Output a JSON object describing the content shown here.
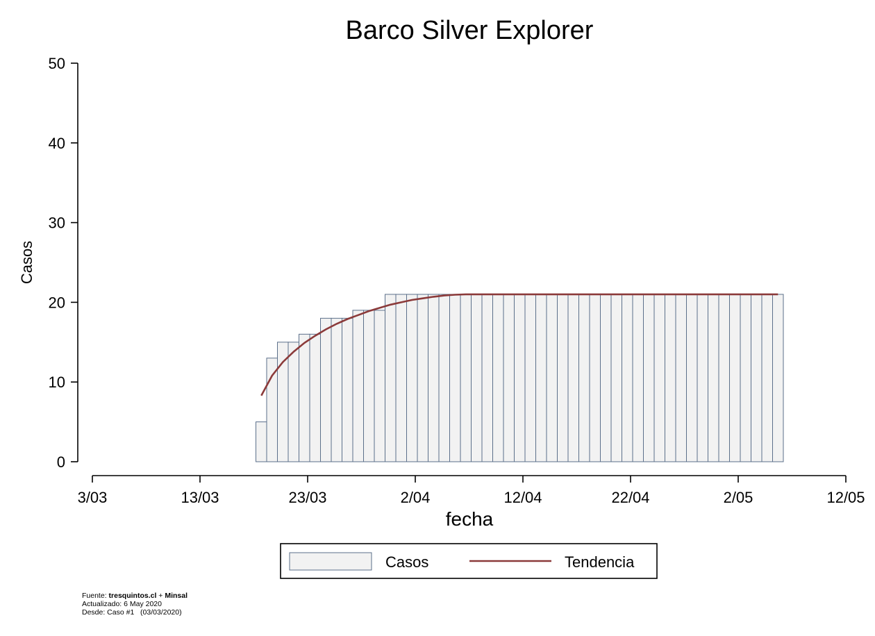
{
  "chart_data": {
    "type": "bar",
    "title": "Barco Silver Explorer",
    "xlabel": "fecha",
    "ylabel": "Casos",
    "ylim": [
      0,
      50
    ],
    "yticks": [
      0,
      10,
      20,
      30,
      40,
      50
    ],
    "xticks": [
      "3/03",
      "13/03",
      "23/03",
      "2/04",
      "12/04",
      "22/04",
      "2/05",
      "12/05"
    ],
    "x_start": "3/03",
    "x_end": "12/05",
    "bar_start": "18/03",
    "bar_end": "5/05",
    "series": [
      {
        "name": "Casos",
        "type": "bar",
        "color": "#f2f2f2",
        "edge_color": "#5b6f8a",
        "values": [
          5,
          13,
          15,
          15,
          16,
          16,
          18,
          18,
          18,
          19,
          19,
          19,
          21,
          21,
          21,
          21,
          21,
          21,
          21,
          21,
          21,
          21,
          21,
          21,
          21,
          21,
          21,
          21,
          21,
          21,
          21,
          21,
          21,
          21,
          21,
          21,
          21,
          21,
          21,
          21,
          21,
          21,
          21,
          21,
          21,
          21,
          21,
          21,
          21
        ]
      },
      {
        "name": "Tendencia",
        "type": "line",
        "color": "#8b3a3a",
        "x_start": "18/03",
        "values": [
          8.3,
          10.8,
          12.5,
          13.8,
          14.9,
          15.8,
          16.6,
          17.3,
          17.9,
          18.4,
          18.9,
          19.3,
          19.7,
          20.0,
          20.3,
          20.5,
          20.7,
          20.85,
          20.95,
          21,
          21,
          21,
          21,
          21,
          21,
          21,
          21,
          21,
          21,
          21,
          21,
          21,
          21,
          21,
          21,
          21,
          21,
          21,
          21,
          21,
          21,
          21,
          21,
          21,
          21,
          21,
          21,
          21,
          21
        ]
      }
    ],
    "legend": {
      "position": "bottom",
      "items": [
        "Casos",
        "Tendencia"
      ]
    }
  },
  "footer": {
    "source_prefix": "Fuente: ",
    "source_site": "tresquintos.cl",
    "source_sep": " + ",
    "source_org": "Minsal",
    "updated": "Actualizado: 6 May 2020",
    "since": "Desde: Caso #1   (03/03/2020)"
  }
}
